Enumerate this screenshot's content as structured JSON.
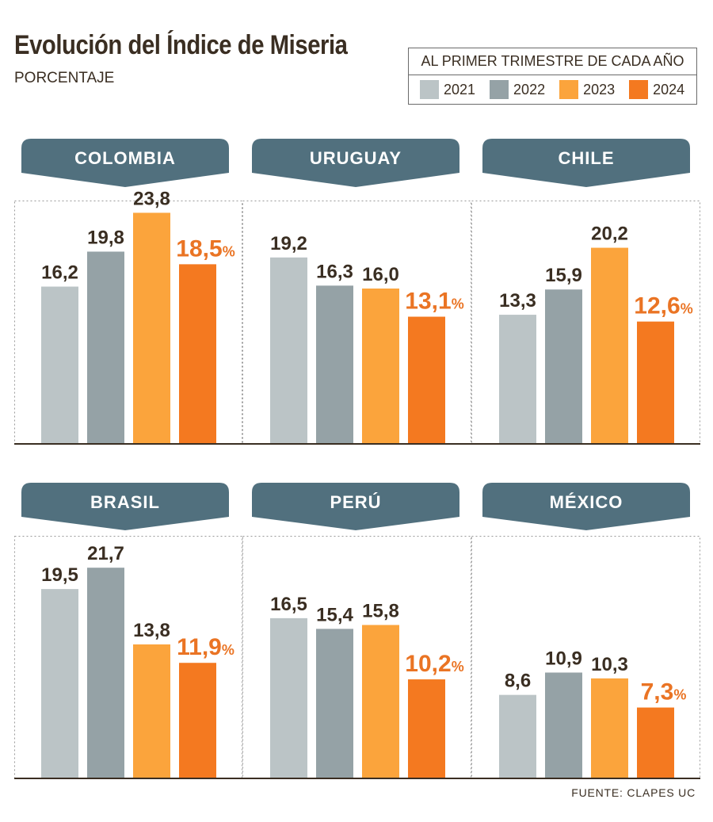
{
  "title": "Evolución del Índice de Miseria",
  "subtitle": "PORCENTAJE",
  "legend": {
    "title": "AL PRIMER TRIMESTRE DE CADA AÑO",
    "items": [
      "2021",
      "2022",
      "2023",
      "2024"
    ]
  },
  "colors": {
    "2021": "#bbc4c6",
    "2022": "#95a2a6",
    "2023": "#fba43c",
    "2024": "#f47920",
    "header": "#51707e",
    "label_default": "#3a2e22",
    "label_highlight": "#ea7424"
  },
  "source": "FUENTE: CLAPES UC",
  "chart_data": {
    "type": "bar",
    "categories": [
      "2021",
      "2022",
      "2023",
      "2024"
    ],
    "panels": [
      {
        "country": "COLOMBIA",
        "values": [
          16.2,
          19.8,
          23.8,
          18.5
        ],
        "labels": [
          "16,2",
          "19,8",
          "23,8",
          "18,5"
        ]
      },
      {
        "country": "URUGUAY",
        "values": [
          19.2,
          16.3,
          16.0,
          13.1
        ],
        "labels": [
          "19,2",
          "16,3",
          "16,0",
          "13,1"
        ]
      },
      {
        "country": "CHILE",
        "values": [
          13.3,
          15.9,
          20.2,
          12.6
        ],
        "labels": [
          "13,3",
          "15,9",
          "20,2",
          "12,6"
        ]
      },
      {
        "country": "BRASIL",
        "values": [
          19.5,
          21.7,
          13.8,
          11.9
        ],
        "labels": [
          "19,5",
          "21,7",
          "13,8",
          "11,9"
        ]
      },
      {
        "country": "PERÚ",
        "values": [
          16.5,
          15.4,
          15.8,
          10.2
        ],
        "labels": [
          "16,5",
          "15,4",
          "15,8",
          "10,2"
        ]
      },
      {
        "country": "MÉXICO",
        "values": [
          8.6,
          10.9,
          10.3,
          7.3
        ],
        "labels": [
          "8,6",
          "10,9",
          "10,3",
          "7,3"
        ]
      }
    ],
    "highlight_suffix": "%"
  }
}
